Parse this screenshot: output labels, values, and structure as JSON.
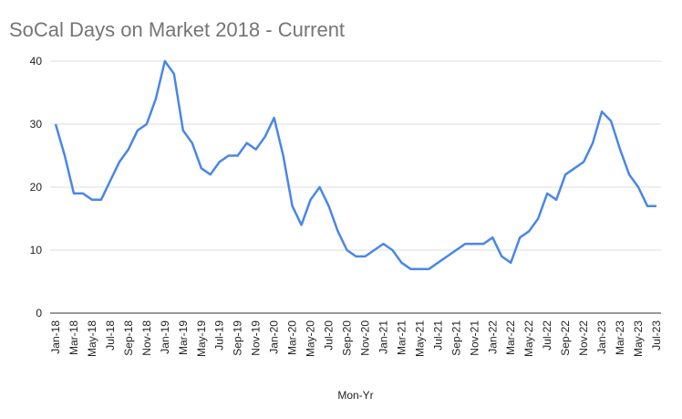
{
  "chart_data": {
    "type": "line",
    "title": "SoCal Days on Market 2018 - Current",
    "x_label": "Mon-Yr",
    "categories": [
      "Jan-18",
      null,
      "Mar-18",
      null,
      "May-18",
      null,
      "Jul-18",
      null,
      "Sep-18",
      null,
      "Nov-18",
      null,
      "Jan-19",
      null,
      "Mar-19",
      null,
      "May-19",
      null,
      "Jul-19",
      null,
      "Sep-19",
      null,
      "Nov-19",
      null,
      "Jan-20",
      null,
      "Mar-20",
      null,
      "May-20",
      null,
      "Jul-20",
      null,
      "Sep-20",
      null,
      "Nov-20",
      null,
      "Jan-21",
      null,
      "Mar-21",
      null,
      "May-21",
      null,
      "Jul-21",
      null,
      "Sep-21",
      null,
      "Nov-21",
      null,
      "Jan-22",
      null,
      "Mar-22",
      null,
      "May-22",
      null,
      "Jul-22",
      null,
      "Sep-22",
      null,
      "Nov-22",
      null,
      "Jan-23",
      null,
      "Mar-23",
      null,
      "May-23",
      null,
      "Jul-23"
    ],
    "values": [
      30,
      25,
      19,
      19,
      18,
      18,
      21,
      24,
      26,
      29,
      30,
      34,
      40,
      38,
      29,
      27,
      23,
      22,
      24,
      25,
      25,
      27,
      26,
      28,
      31,
      25,
      17,
      14,
      18,
      20,
      17,
      13,
      10,
      9,
      9,
      10,
      11,
      10,
      8,
      7,
      7,
      7,
      8,
      9,
      10,
      11,
      11,
      11,
      12,
      9,
      8,
      12,
      13,
      15,
      19,
      18,
      22,
      23,
      24,
      27,
      32,
      30.5,
      26,
      22,
      20,
      17,
      17
    ],
    "color": "#4a86e8",
    "ylim": [
      0,
      40
    ],
    "yticks": [
      0,
      10,
      20,
      30,
      40
    ],
    "grid": true
  }
}
